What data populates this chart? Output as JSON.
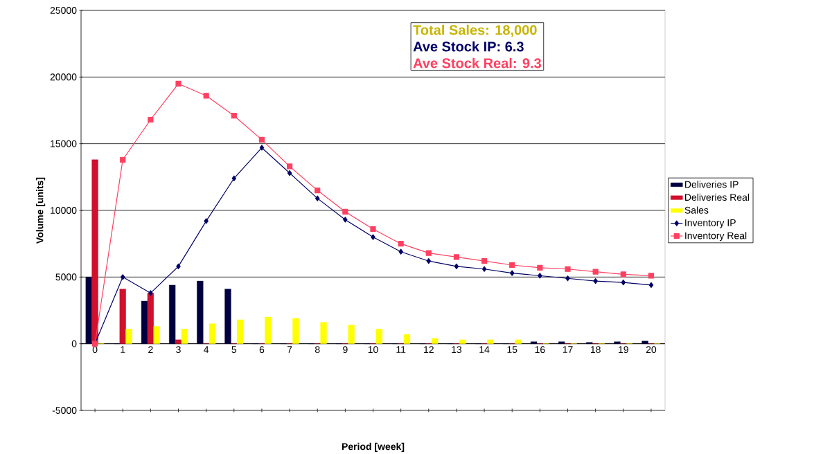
{
  "chart_data": {
    "type": "bar",
    "xlabel": "Period [week]",
    "ylabel": "Volume [units]",
    "categories": [
      "0",
      "1",
      "2",
      "3",
      "4",
      "5",
      "6",
      "7",
      "8",
      "9",
      "10",
      "11",
      "12",
      "13",
      "14",
      "15",
      "16",
      "17",
      "18",
      "19",
      "20"
    ],
    "series": [
      {
        "name": "Deliveries IP",
        "color": "#000040",
        "values": [
          5000,
          0,
          3200,
          4400,
          4700,
          4100,
          0,
          0,
          0,
          0,
          0,
          0,
          0,
          0,
          0,
          0,
          150,
          150,
          100,
          150,
          200
        ]
      },
      {
        "name": "Deliveries Real",
        "color": "#d0102c",
        "values": [
          13800,
          4100,
          3800,
          300,
          0,
          0,
          0,
          0,
          0,
          0,
          0,
          0,
          0,
          0,
          0,
          0,
          0,
          0,
          0,
          0,
          0
        ]
      },
      {
        "name": "Sales",
        "color": "#ffff00",
        "values": [
          0,
          1100,
          1300,
          1100,
          1500,
          1800,
          2000,
          1900,
          1600,
          1400,
          1100,
          700,
          400,
          300,
          300,
          300,
          0,
          0,
          0,
          0,
          0
        ]
      },
      {
        "name": "Inventory IP",
        "type": "line",
        "marker": "diamond",
        "color": "#000066",
        "values": [
          0,
          5000,
          3800,
          5800,
          9200,
          12400,
          14700,
          12800,
          10900,
          9300,
          8000,
          6900,
          6200,
          5800,
          5600,
          5300,
          5100,
          4900,
          4700,
          4600,
          4400
        ]
      },
      {
        "name": "Inventory Real",
        "type": "line",
        "marker": "square",
        "color": "#ff4060",
        "values": [
          0,
          13800,
          16800,
          19500,
          18600,
          17100,
          15300,
          13300,
          11500,
          9900,
          8600,
          7500,
          6800,
          6500,
          6200,
          5900,
          5700,
          5600,
          5400,
          5200,
          5100
        ]
      }
    ],
    "ylim": [
      -5000,
      25000
    ],
    "yticks": [
      -5000,
      0,
      5000,
      10000,
      15000,
      20000,
      25000
    ],
    "grid": "y",
    "legend": "right",
    "annotations": [
      "Total Sales: 18,000",
      "Ave Stock IP:   6.3",
      "Ave Stock Real:  9.3"
    ]
  }
}
